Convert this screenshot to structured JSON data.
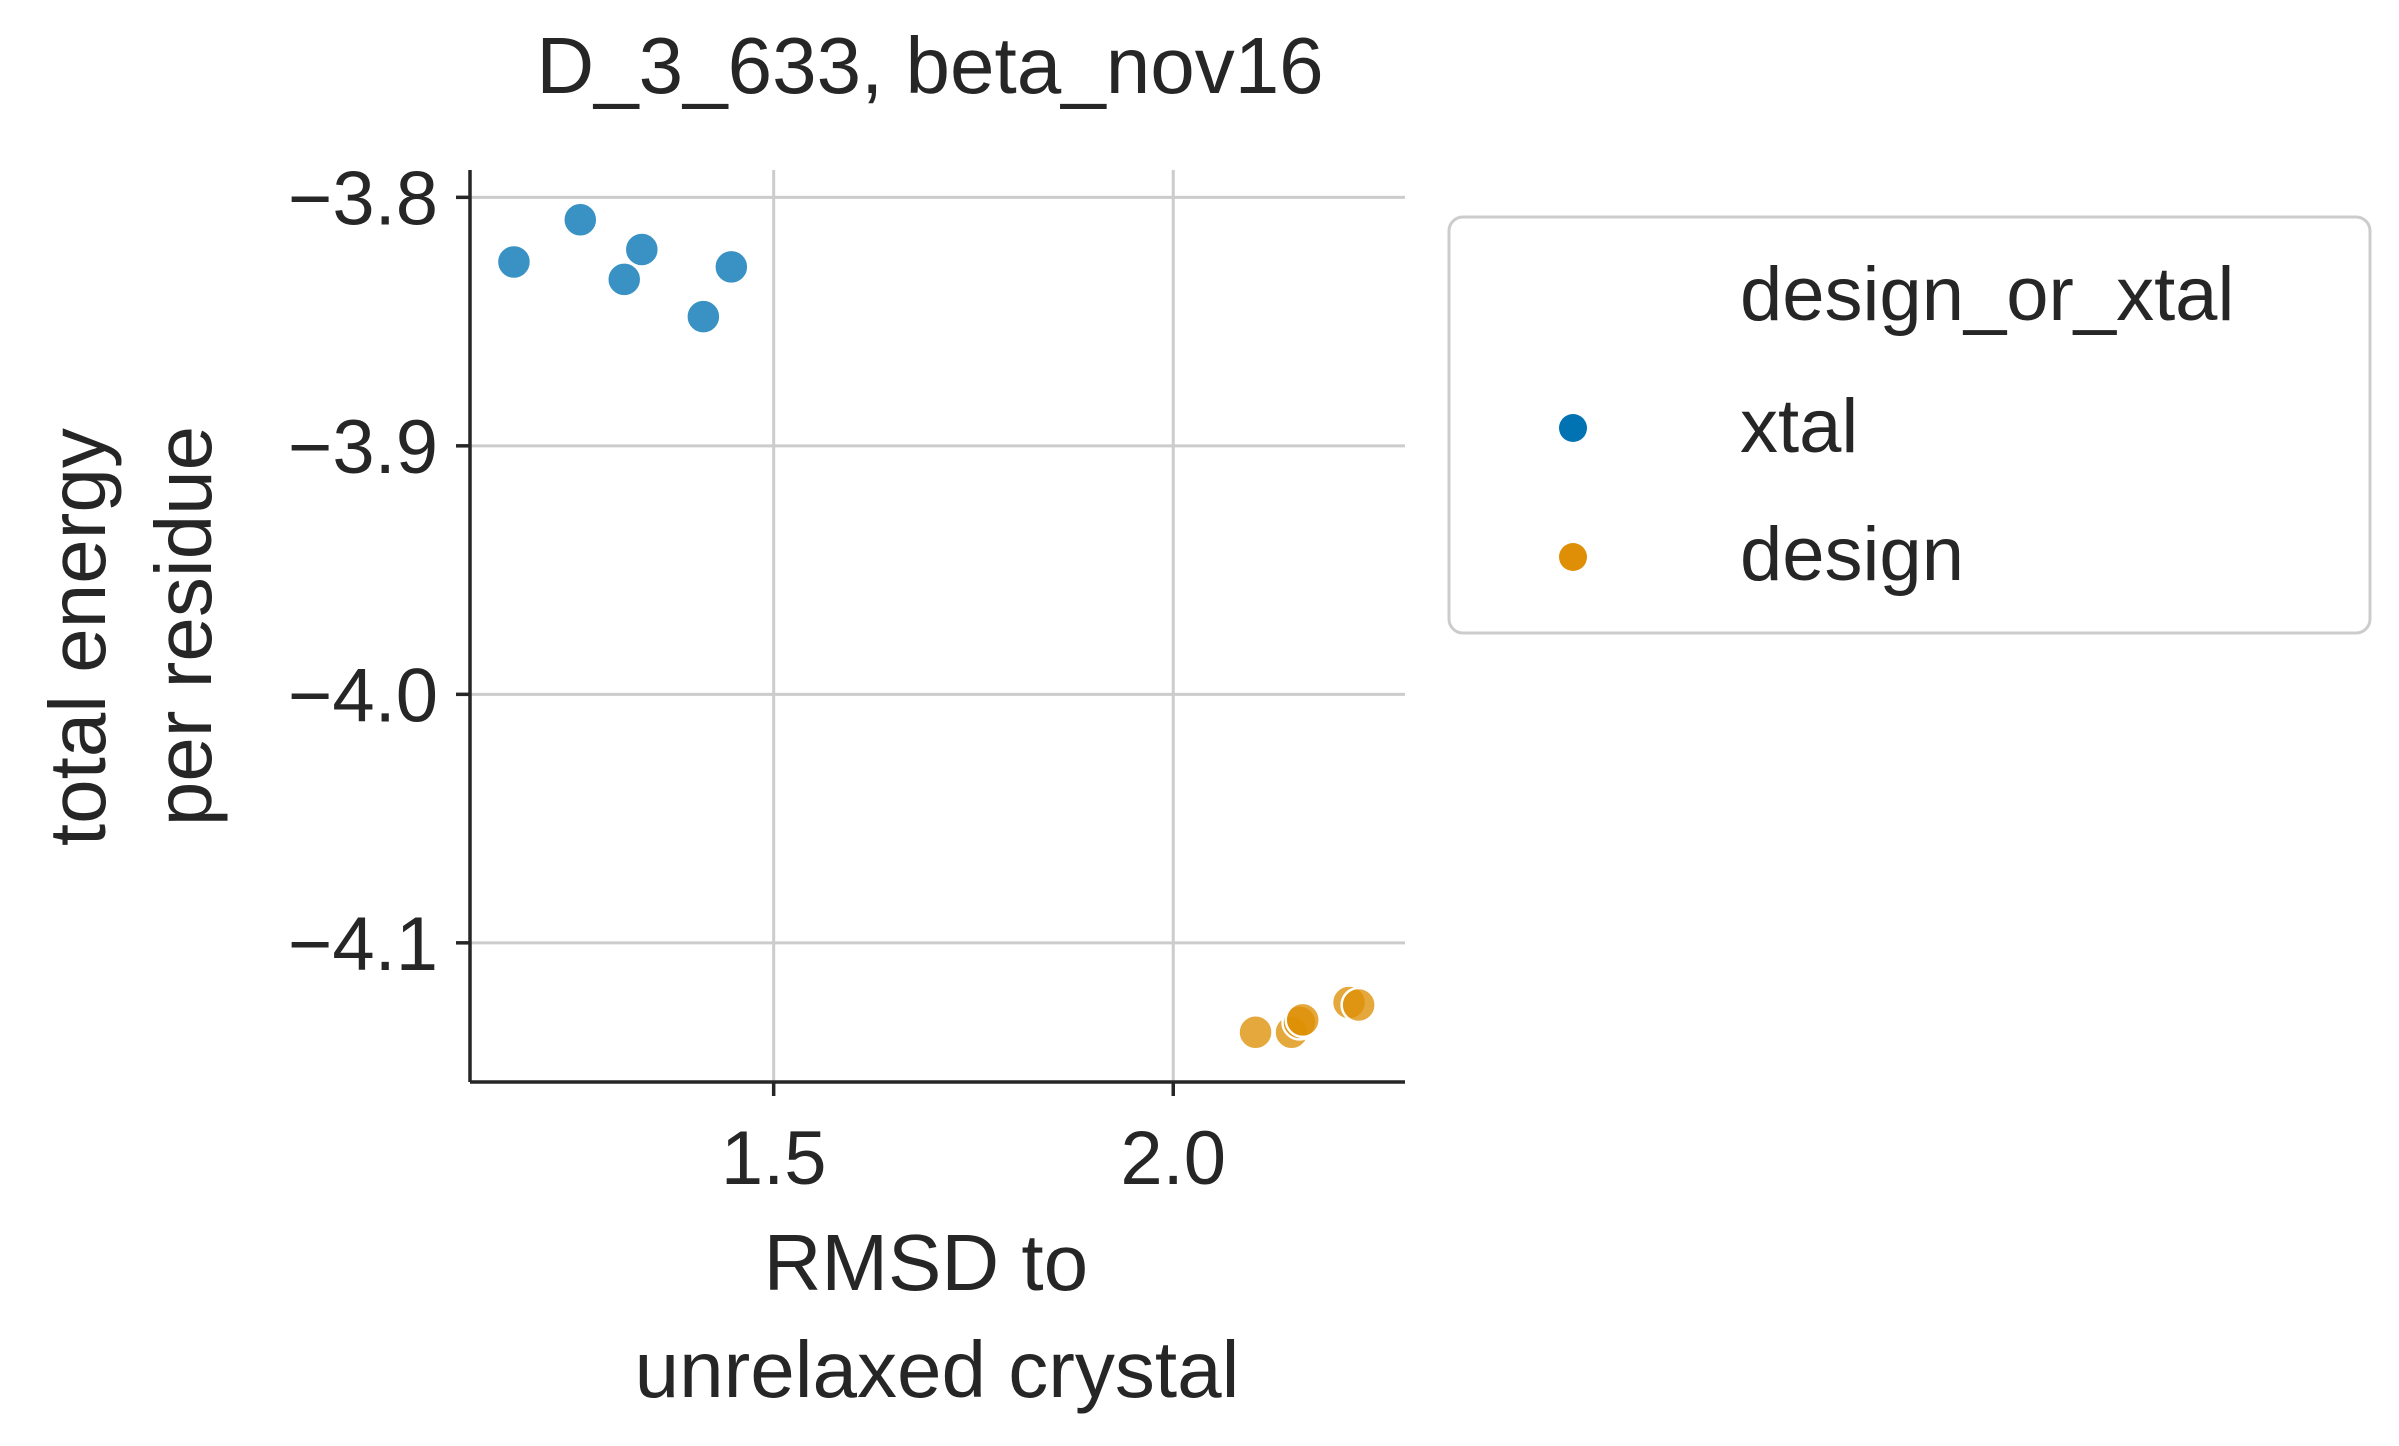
{
  "chart_data": {
    "type": "scatter",
    "title": "D_3_633, beta_nov16",
    "xlabel": [
      "RMSD to",
      "unrelaxed crystal"
    ],
    "ylabel": [
      "total energy",
      "per residue"
    ],
    "xlim": [
      1.12,
      2.29
    ],
    "ylim": [
      -4.156,
      -3.789
    ],
    "xticks": [
      1.5,
      2.0
    ],
    "xtick_labels": [
      "1.5",
      "2.0"
    ],
    "yticks": [
      -3.8,
      -3.9,
      -4.0,
      -4.1
    ],
    "ytick_labels": [
      "−3.8",
      "−3.9",
      "−4.0",
      "−4.1"
    ],
    "grid": true,
    "legend": {
      "title": "design_or_xtal",
      "placement": "outside-right",
      "entries": [
        {
          "label": "xtal",
          "color": "#0173b2"
        },
        {
          "label": "design",
          "color": "#de8f05"
        }
      ]
    },
    "series": [
      {
        "name": "xtal",
        "color": "#0173b2",
        "points": [
          {
            "x": 1.175,
            "y": -3.826
          },
          {
            "x": 1.258,
            "y": -3.809
          },
          {
            "x": 1.313,
            "y": -3.833
          },
          {
            "x": 1.335,
            "y": -3.821
          },
          {
            "x": 1.412,
            "y": -3.848
          },
          {
            "x": 1.447,
            "y": -3.828
          }
        ]
      },
      {
        "name": "design",
        "color": "#de8f05",
        "points": [
          {
            "x": 2.103,
            "y": -4.136
          },
          {
            "x": 2.148,
            "y": -4.136
          },
          {
            "x": 2.158,
            "y": -4.132
          },
          {
            "x": 2.162,
            "y": -4.131
          },
          {
            "x": 2.22,
            "y": -4.124
          },
          {
            "x": 2.232,
            "y": -4.125
          }
        ]
      }
    ]
  }
}
